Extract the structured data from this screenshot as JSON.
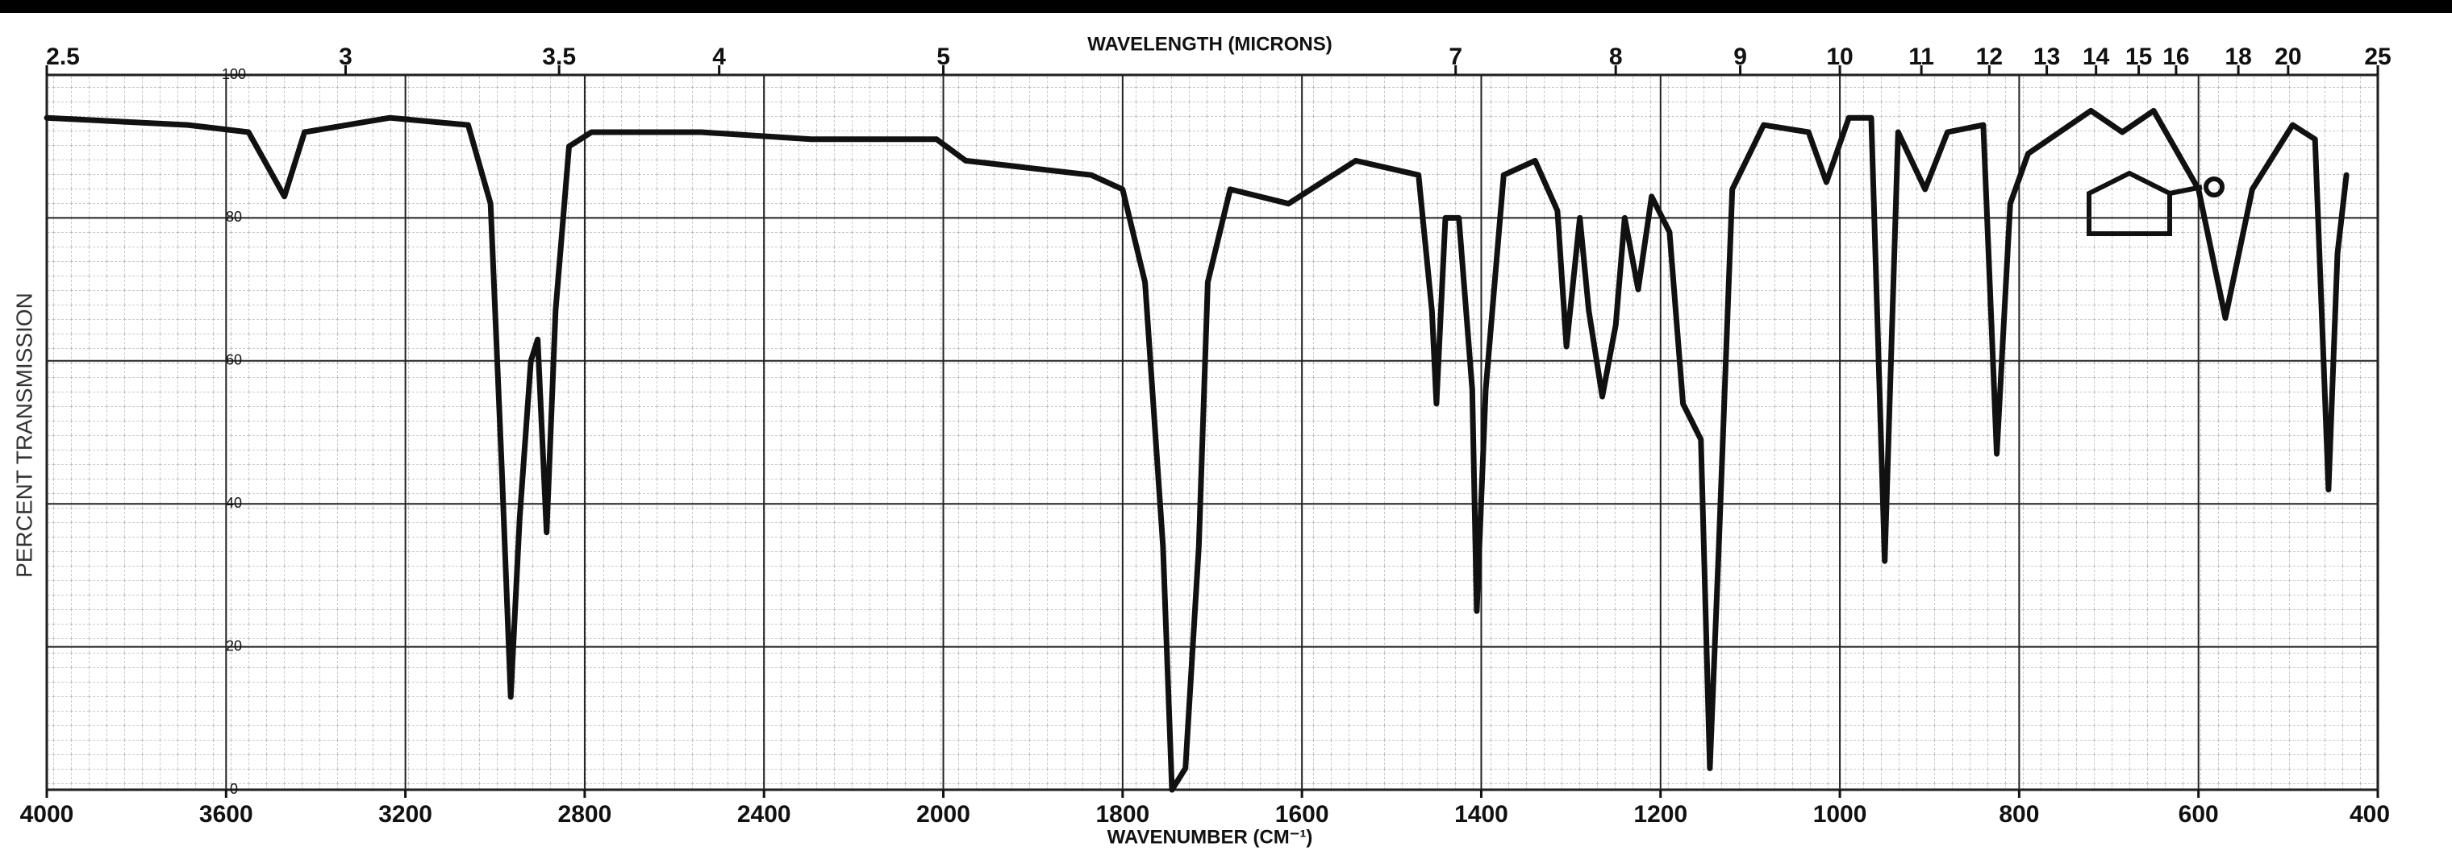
{
  "chart_data": {
    "type": "line",
    "x2label": "WAVELENGTH (MICRONS)",
    "xlabel": "WAVENUMBER (CM⁻¹)",
    "ylabel": "PERCENT TRANSMISSION",
    "xlim": [
      4000,
      400
    ],
    "xticks": [
      4000,
      3600,
      3200,
      2800,
      2400,
      2000,
      1800,
      1600,
      1400,
      1200,
      1000,
      800,
      600,
      400
    ],
    "x2ticks": [
      2.5,
      3,
      3.5,
      4,
      5,
      7,
      8,
      9,
      10,
      11,
      12,
      13,
      14,
      15,
      16,
      18,
      20,
      25
    ],
    "ylim": [
      0,
      100
    ],
    "yticks": [
      0,
      20,
      40,
      60,
      80,
      100
    ],
    "grid": true,
    "color": "#111111",
    "x": [
      4000,
      3685,
      3550,
      3470,
      3425,
      3235,
      3060,
      3010,
      2985,
      2965,
      2945,
      2920,
      2905,
      2885,
      2865,
      2835,
      2785,
      2540,
      2295,
      2015,
      1975,
      1835,
      1800,
      1775,
      1755,
      1745,
      1730,
      1715,
      1705,
      1680,
      1615,
      1540,
      1470,
      1455,
      1450,
      1440,
      1425,
      1410,
      1405,
      1395,
      1375,
      1340,
      1315,
      1305,
      1290,
      1280,
      1265,
      1250,
      1240,
      1225,
      1210,
      1190,
      1175,
      1155,
      1145,
      1135,
      1120,
      1085,
      1035,
      1015,
      990,
      965,
      950,
      935,
      905,
      880,
      840,
      825,
      810,
      790,
      720,
      685,
      650,
      600,
      570,
      540,
      495,
      470,
      455,
      445,
      435
    ],
    "values": [
      94,
      93,
      92,
      83,
      92,
      94,
      93,
      82,
      45,
      13,
      38,
      60,
      63,
      36,
      67,
      90,
      92,
      92,
      91,
      91,
      88,
      86,
      84,
      71,
      34,
      0,
      3,
      34,
      71,
      84,
      82,
      88,
      86,
      67,
      54,
      80,
      80,
      56,
      25,
      56,
      86,
      88,
      81,
      62,
      80,
      67,
      55,
      65,
      80,
      70,
      83,
      78,
      54,
      49,
      3,
      34,
      84,
      93,
      92,
      85,
      94,
      94,
      32,
      92,
      84,
      92,
      93,
      47,
      82,
      89,
      95,
      92,
      95,
      84,
      66,
      84,
      93,
      91,
      42,
      75,
      86
    ]
  }
}
